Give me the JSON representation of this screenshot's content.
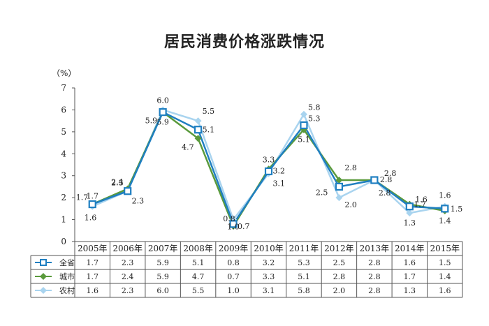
{
  "chart_data": {
    "type": "line",
    "title": "居民消费价格涨跌情况",
    "unit_label": "（%）",
    "categories": [
      "2005年",
      "2006年",
      "2007年",
      "2008年",
      "2009年",
      "2010年",
      "2011年",
      "2012年",
      "2013年",
      "2014年",
      "2015年"
    ],
    "ylim": [
      0,
      7
    ],
    "yticks": [
      "0",
      "1",
      "2",
      "3",
      "4",
      "5",
      "6",
      "7"
    ],
    "grid": false,
    "legend": "data-table",
    "series": [
      {
        "name": "全省",
        "values": [
          1.7,
          2.3,
          5.9,
          5.1,
          0.8,
          3.2,
          5.3,
          2.5,
          2.8,
          1.6,
          1.5
        ],
        "color": "#1f7fc1",
        "marker": "square"
      },
      {
        "name": "城市",
        "values": [
          1.7,
          2.4,
          5.9,
          4.7,
          0.7,
          3.3,
          5.1,
          2.8,
          2.8,
          1.7,
          1.4
        ],
        "color": "#5a9a3c",
        "marker": "diamond"
      },
      {
        "name": "农村",
        "values": [
          1.6,
          2.3,
          6.0,
          5.5,
          1.0,
          3.1,
          5.8,
          2.0,
          2.8,
          1.3,
          1.6
        ],
        "color": "#a9d4ef",
        "marker": "diamond"
      }
    ],
    "table": {
      "rows": [
        [
          "1.7",
          "2.3",
          "5.9",
          "5.1",
          "0.8",
          "3.2",
          "5.3",
          "2.5",
          "2.8",
          "1.6",
          "1.5"
        ],
        [
          "1.7",
          "2.4",
          "5.9",
          "4.7",
          "0.7",
          "3.3",
          "5.1",
          "2.8",
          "2.8",
          "1.7",
          "1.4"
        ],
        [
          "1.6",
          "2.3",
          "6.0",
          "5.5",
          "1.0",
          "3.1",
          "5.8",
          "2.0",
          "2.8",
          "1.3",
          "1.6"
        ]
      ]
    }
  }
}
